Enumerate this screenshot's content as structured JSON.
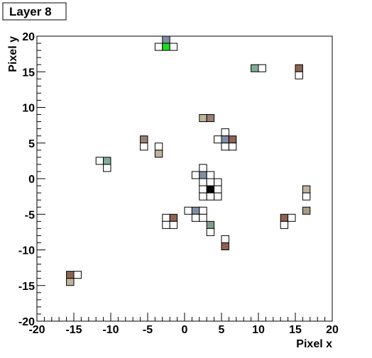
{
  "chart_data": {
    "type": "cells",
    "title": "Layer 8",
    "x_label": "Pixel x",
    "y_label": "Pixel y",
    "xlim": [
      -20,
      20
    ],
    "ylim": [
      -20,
      20
    ],
    "xticks": [
      -20,
      -15,
      -10,
      -5,
      0,
      5,
      10,
      15,
      20
    ],
    "yticks": [
      -20,
      -15,
      -10,
      -5,
      0,
      5,
      10,
      15,
      20
    ],
    "x": [
      -3,
      -4,
      -3,
      -2,
      9,
      10,
      15,
      15,
      2,
      3,
      5,
      4,
      5,
      6,
      5,
      6,
      -6,
      -6,
      -4,
      -4,
      -12,
      -11,
      -11,
      2,
      1,
      2,
      3,
      2,
      3,
      4,
      2,
      3,
      4,
      2,
      3,
      4,
      16,
      16,
      16,
      13,
      14,
      13,
      -3,
      -2,
      -3,
      -2,
      0,
      1,
      2,
      1,
      2,
      3,
      3,
      5,
      5,
      -16,
      -15,
      -16
    ],
    "y": [
      19,
      18,
      18,
      18,
      15,
      15,
      15,
      14,
      8,
      8,
      6,
      5,
      5,
      5,
      4,
      4,
      5,
      4,
      4,
      3,
      2,
      2,
      1,
      1,
      0,
      0,
      0,
      -1,
      -1,
      -1,
      -2,
      -2,
      -2,
      -3,
      -3,
      -3,
      -2,
      -3,
      -5,
      -6,
      -6,
      -7,
      -6,
      -6,
      -7,
      -7,
      -5,
      -5,
      -5,
      -6,
      -6,
      -7,
      -8,
      -9,
      -10,
      -14,
      -14,
      -15
    ],
    "colors": [
      "#7f8fa6",
      "#ffffff",
      "#22dd22",
      "#ffffff",
      "#7fae96",
      "#ffffff",
      "#8c6452",
      "#ffffff",
      "#bfb39c",
      "#9a7f73",
      "#ffffff",
      "#ffffff",
      "#7f8fa6",
      "#8c6452",
      "#ffffff",
      "#ffffff",
      "#9a7f73",
      "#ffffff",
      "#ffffff",
      "#bfb39c",
      "#ffffff",
      "#7fae96",
      "#ffffff",
      "#ffffff",
      "#ffffff",
      "#7f8fa6",
      "#ffffff",
      "#ffffff",
      "#ffffff",
      "#ffffff",
      "#ffffff",
      "#000000",
      "#ffffff",
      "#ffffff",
      "#ffffff",
      "#ffffff",
      "#bfb39c",
      "#ffffff",
      "#a89c84",
      "#8c6452",
      "#ffffff",
      "#ffffff",
      "#ffffff",
      "#8c6452",
      "#ffffff",
      "#ffffff",
      "#ffffff",
      "#7f8fa6",
      "#ffffff",
      "#ffffff",
      "#ffffff",
      "#7fa08a",
      "#ffffff",
      "#ffffff",
      "#8c6452",
      "#8c6452",
      "#ffffff",
      "#bfb39c"
    ]
  }
}
